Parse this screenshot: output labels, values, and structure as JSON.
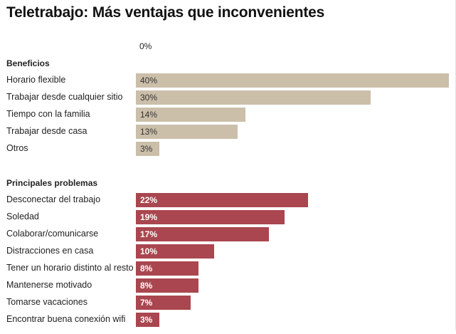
{
  "chart_data": {
    "type": "bar",
    "orientation": "horizontal",
    "title": "Teletrabajo: Más ventajas que inconvenientes",
    "axis_tick_label": "0%",
    "xlim": [
      0,
      40
    ],
    "unit": "%",
    "colors": {
      "benefits": "#cbbfaa",
      "problems": "#a9464f"
    },
    "groups": [
      {
        "name": "Beneficios",
        "categories": [
          "Horario flexible",
          "Trabajar desde cualquier sitio",
          "Tiempo con la familia",
          "Trabajar desde casa",
          "Otros"
        ],
        "values": [
          40,
          30,
          14,
          13,
          3
        ],
        "labels": [
          "40%",
          "30%",
          "14%",
          "13%",
          "3%"
        ]
      },
      {
        "name": "Principales problemas",
        "categories": [
          "Desconectar del trabajo",
          "Soledad",
          "Colaborar/comunicarse",
          "Distracciones en casa",
          "Tener un horario distinto al resto",
          "Mantenerse motivado",
          "Tomarse vacaciones",
          "Encontrar buena conexión wifi"
        ],
        "values": [
          22,
          19,
          17,
          10,
          8,
          8,
          7,
          3
        ],
        "labels": [
          "22%",
          "19%",
          "17%",
          "10%",
          "8%",
          "8%",
          "7%",
          "3%"
        ]
      }
    ]
  }
}
